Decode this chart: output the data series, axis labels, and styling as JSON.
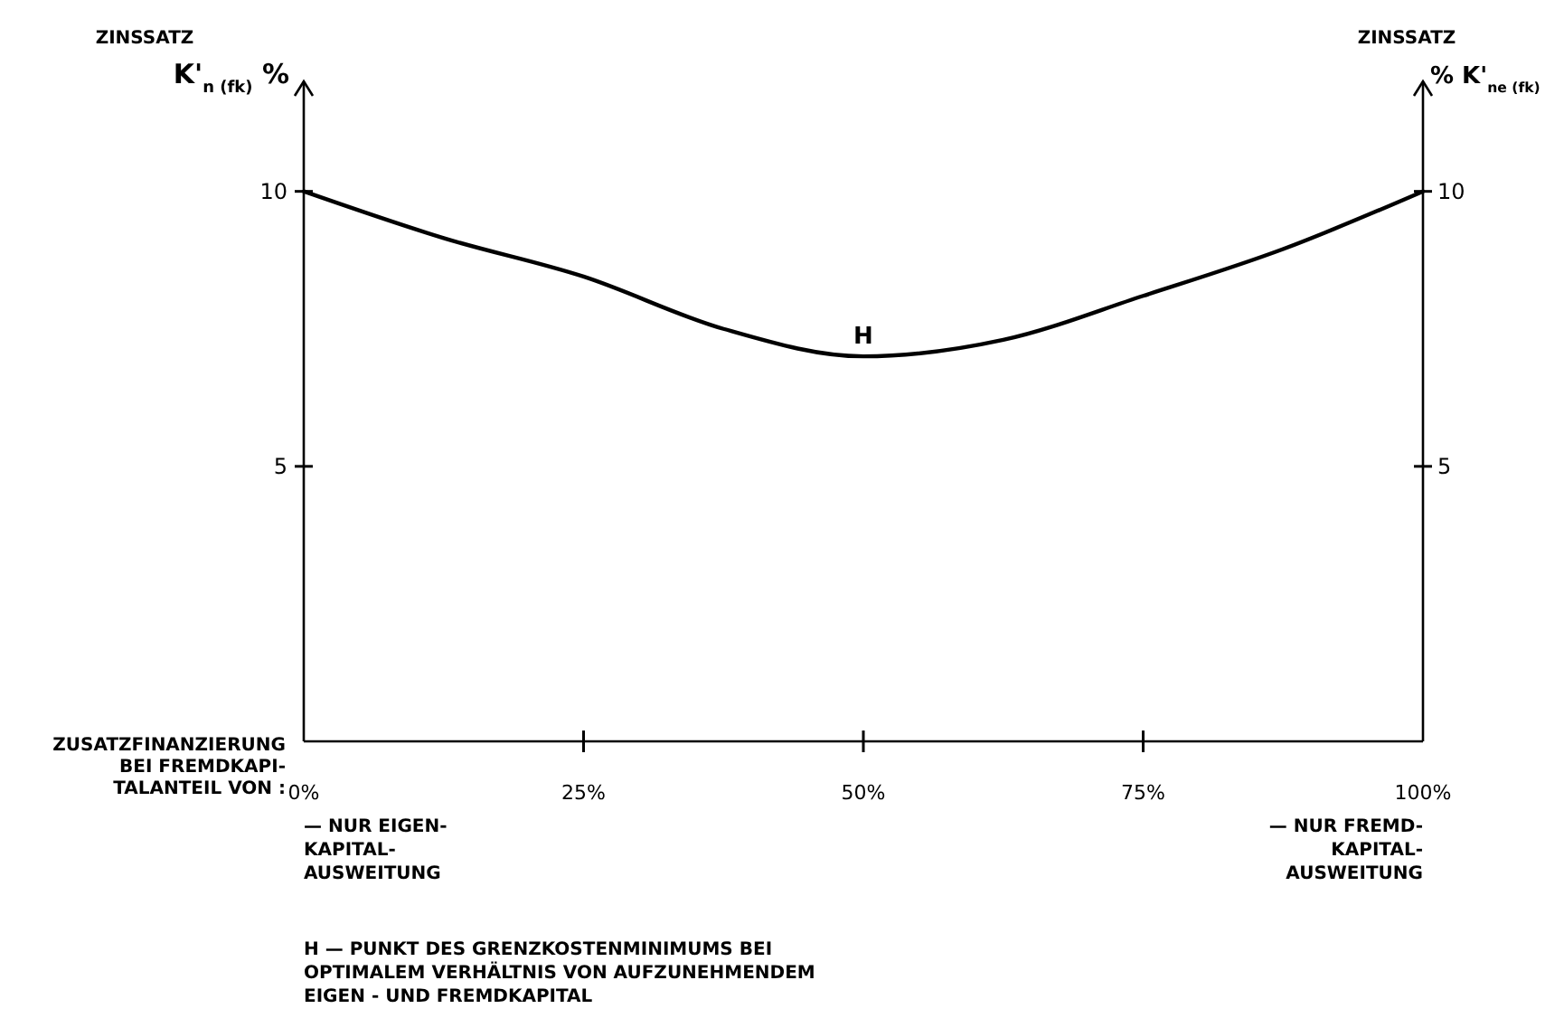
{
  "chart_data": {
    "type": "line",
    "ylabel": "ZINSSATZ",
    "y2label": "ZINSSATZ",
    "xlabel": "ZUSATZFINANZIERUNG\nBEI FREMDKAPI-\nTALANTEIL VON :",
    "x": [
      0,
      12.5,
      25,
      37.5,
      50,
      62.5,
      75,
      87.5,
      100
    ],
    "series": [
      {
        "color": "#000000",
        "values": [
          10,
          9.15,
          8.45,
          7.5,
          7.0,
          7.3,
          8.1,
          8.95,
          10
        ]
      }
    ],
    "xlim": [
      0,
      100
    ],
    "xticks": [
      {
        "value": 0,
        "label": "0%"
      },
      {
        "value": 25,
        "label": "25%"
      },
      {
        "value": 50,
        "label": "50%"
      },
      {
        "value": 75,
        "label": "75%"
      },
      {
        "value": 100,
        "label": "100%"
      }
    ],
    "ylim": [
      0,
      12
    ],
    "yticks": [
      5,
      10
    ],
    "y2lim": [
      0,
      12
    ],
    "y2ticks": [
      5,
      10
    ],
    "grid": false,
    "marker": "none",
    "line_style": "solid",
    "annotations": [
      "K'$_{n (fk)}$ %",
      "% K'$_{ne (fk)}$",
      "— NUR EIGEN-\nKAPITAL-\nAUSWEITUNG",
      "— NUR FREMD-\nKAPITAL-\nAUSWEITUNG",
      "H — PUNKT DES GRENZKOSTENMINIMUMS BEI\nOPTIMALEM VERHÄLTNIS VON AUFZUNEHMENDEM\nEIGEN - UND FREMDKAPITAL",
      {
        "text": "H",
        "x": 50,
        "y": 7
      }
    ]
  }
}
